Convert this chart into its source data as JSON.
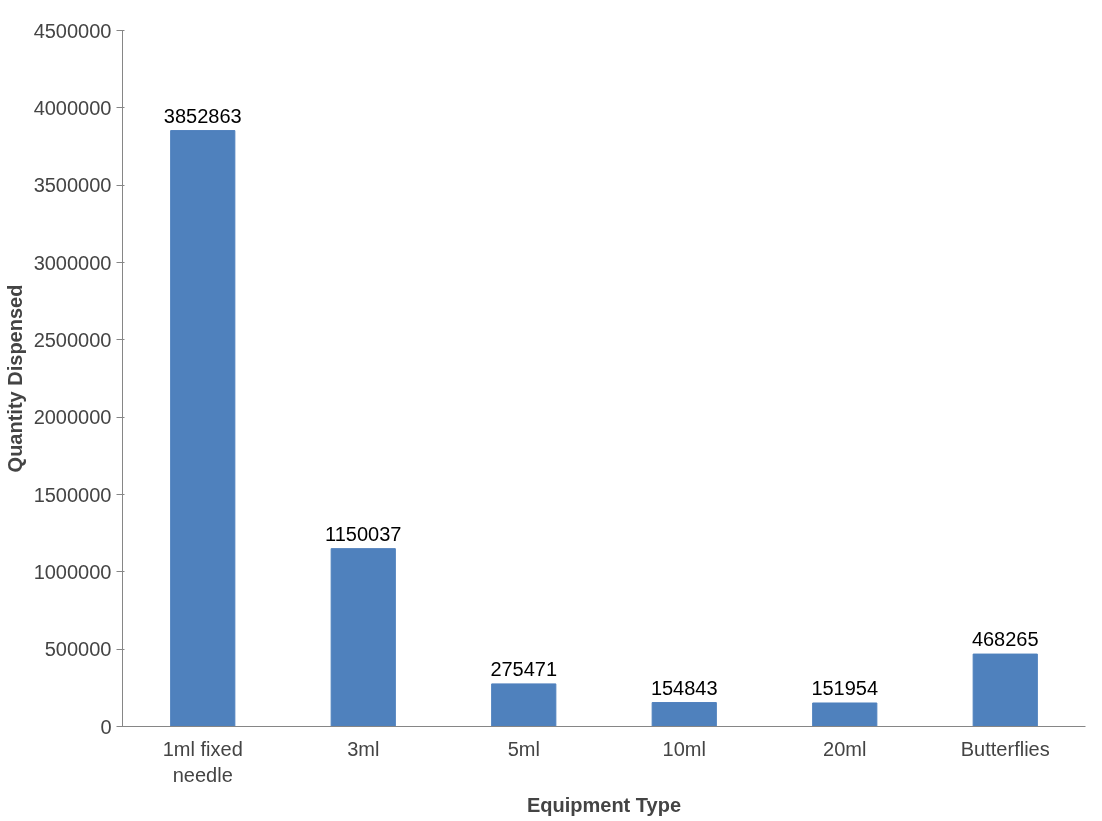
{
  "chart_data": {
    "type": "bar",
    "xlabel": "Equipment Type",
    "ylabel": "Quantity Dispensed",
    "categories": [
      "1ml fixed needle",
      "3ml",
      "5ml",
      "10ml",
      "20ml",
      "Butterflies"
    ],
    "values": [
      3852863,
      1150037,
      275471,
      154843,
      151954,
      468265
    ],
    "color": "#4f81bd",
    "ylim": [
      0,
      4500000
    ],
    "yticks": [
      0,
      500000,
      1000000,
      1500000,
      2000000,
      2500000,
      3000000,
      3500000,
      4000000,
      4500000
    ],
    "grid": false,
    "data_labels": true
  }
}
